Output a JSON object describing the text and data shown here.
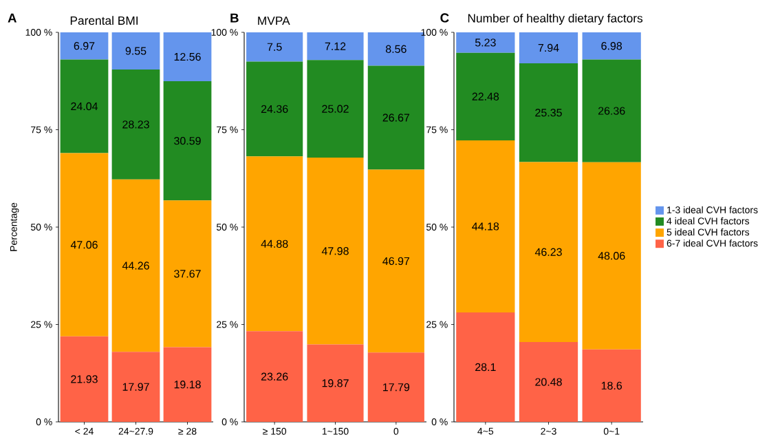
{
  "chart_data": [
    {
      "type": "bar",
      "stacked": true,
      "title": "Parental BMI",
      "ylabel": "Percentage",
      "annotations": [
        "A"
      ],
      "categories": [
        "< 24",
        "24~27.9",
        "≥ 28"
      ],
      "ylim": [
        0,
        100
      ],
      "yticks": [
        {
          "value": 0,
          "label": "0 %"
        },
        {
          "value": 25,
          "label": "25 %"
        },
        {
          "value": 50,
          "label": "50 %"
        },
        {
          "value": 75,
          "label": "75 %"
        },
        {
          "value": 100,
          "label": "100 %"
        }
      ],
      "data_labels": true,
      "grid": false,
      "legend": false,
      "series": [
        {
          "color": "#ff6347",
          "values": [
            21.93,
            17.97,
            19.18
          ]
        },
        {
          "color": "#ffa500",
          "values": [
            47.06,
            44.26,
            37.67
          ]
        },
        {
          "color": "#228b22",
          "values": [
            24.04,
            28.23,
            30.59
          ]
        },
        {
          "color": "#6495ed",
          "values": [
            6.97,
            9.55,
            12.56
          ]
        }
      ]
    },
    {
      "type": "bar",
      "stacked": true,
      "title": "MVPA",
      "annotations": [
        "B"
      ],
      "categories": [
        "≥ 150",
        "1~150",
        "0"
      ],
      "ylim": [
        0,
        100
      ],
      "yticks": [
        {
          "value": 0,
          "label": "0 %"
        },
        {
          "value": 25,
          "label": "25 %"
        },
        {
          "value": 50,
          "label": "50 %"
        },
        {
          "value": 75,
          "label": "75 %"
        },
        {
          "value": 100,
          "label": "100 %"
        }
      ],
      "data_labels": true,
      "grid": false,
      "legend": false,
      "series": [
        {
          "color": "#ff6347",
          "values": [
            23.26,
            19.87,
            17.79
          ]
        },
        {
          "color": "#ffa500",
          "values": [
            44.88,
            47.98,
            46.97
          ]
        },
        {
          "color": "#228b22",
          "values": [
            24.36,
            25.02,
            26.67
          ]
        },
        {
          "color": "#6495ed",
          "values": [
            7.5,
            7.12,
            8.56
          ]
        }
      ]
    },
    {
      "type": "bar",
      "stacked": true,
      "title": "Number of healthy dietary factors",
      "annotations": [
        "C"
      ],
      "categories": [
        "4~5",
        "2~3",
        "0~1"
      ],
      "ylim": [
        0,
        100
      ],
      "yticks": [
        {
          "value": 0,
          "label": "0 %"
        },
        {
          "value": 25,
          "label": "25 %"
        },
        {
          "value": 50,
          "label": "50 %"
        },
        {
          "value": 75,
          "label": "75 %"
        },
        {
          "value": 100,
          "label": "100 %"
        }
      ],
      "data_labels": true,
      "grid": false,
      "legend": "right",
      "series": [
        {
          "name": "6-7 ideal CVH factors",
          "color": "#ff6347",
          "values": [
            28.1,
            20.48,
            18.6
          ]
        },
        {
          "name": "5 ideal CVH factors",
          "color": "#ffa500",
          "values": [
            44.18,
            46.23,
            48.06
          ]
        },
        {
          "name": "4 ideal CVH factors",
          "color": "#228b22",
          "values": [
            22.48,
            25.35,
            26.36
          ]
        },
        {
          "name": "1-3 ideal CVH factors",
          "color": "#6495ed",
          "values": [
            5.23,
            7.94,
            6.98
          ]
        }
      ]
    }
  ]
}
